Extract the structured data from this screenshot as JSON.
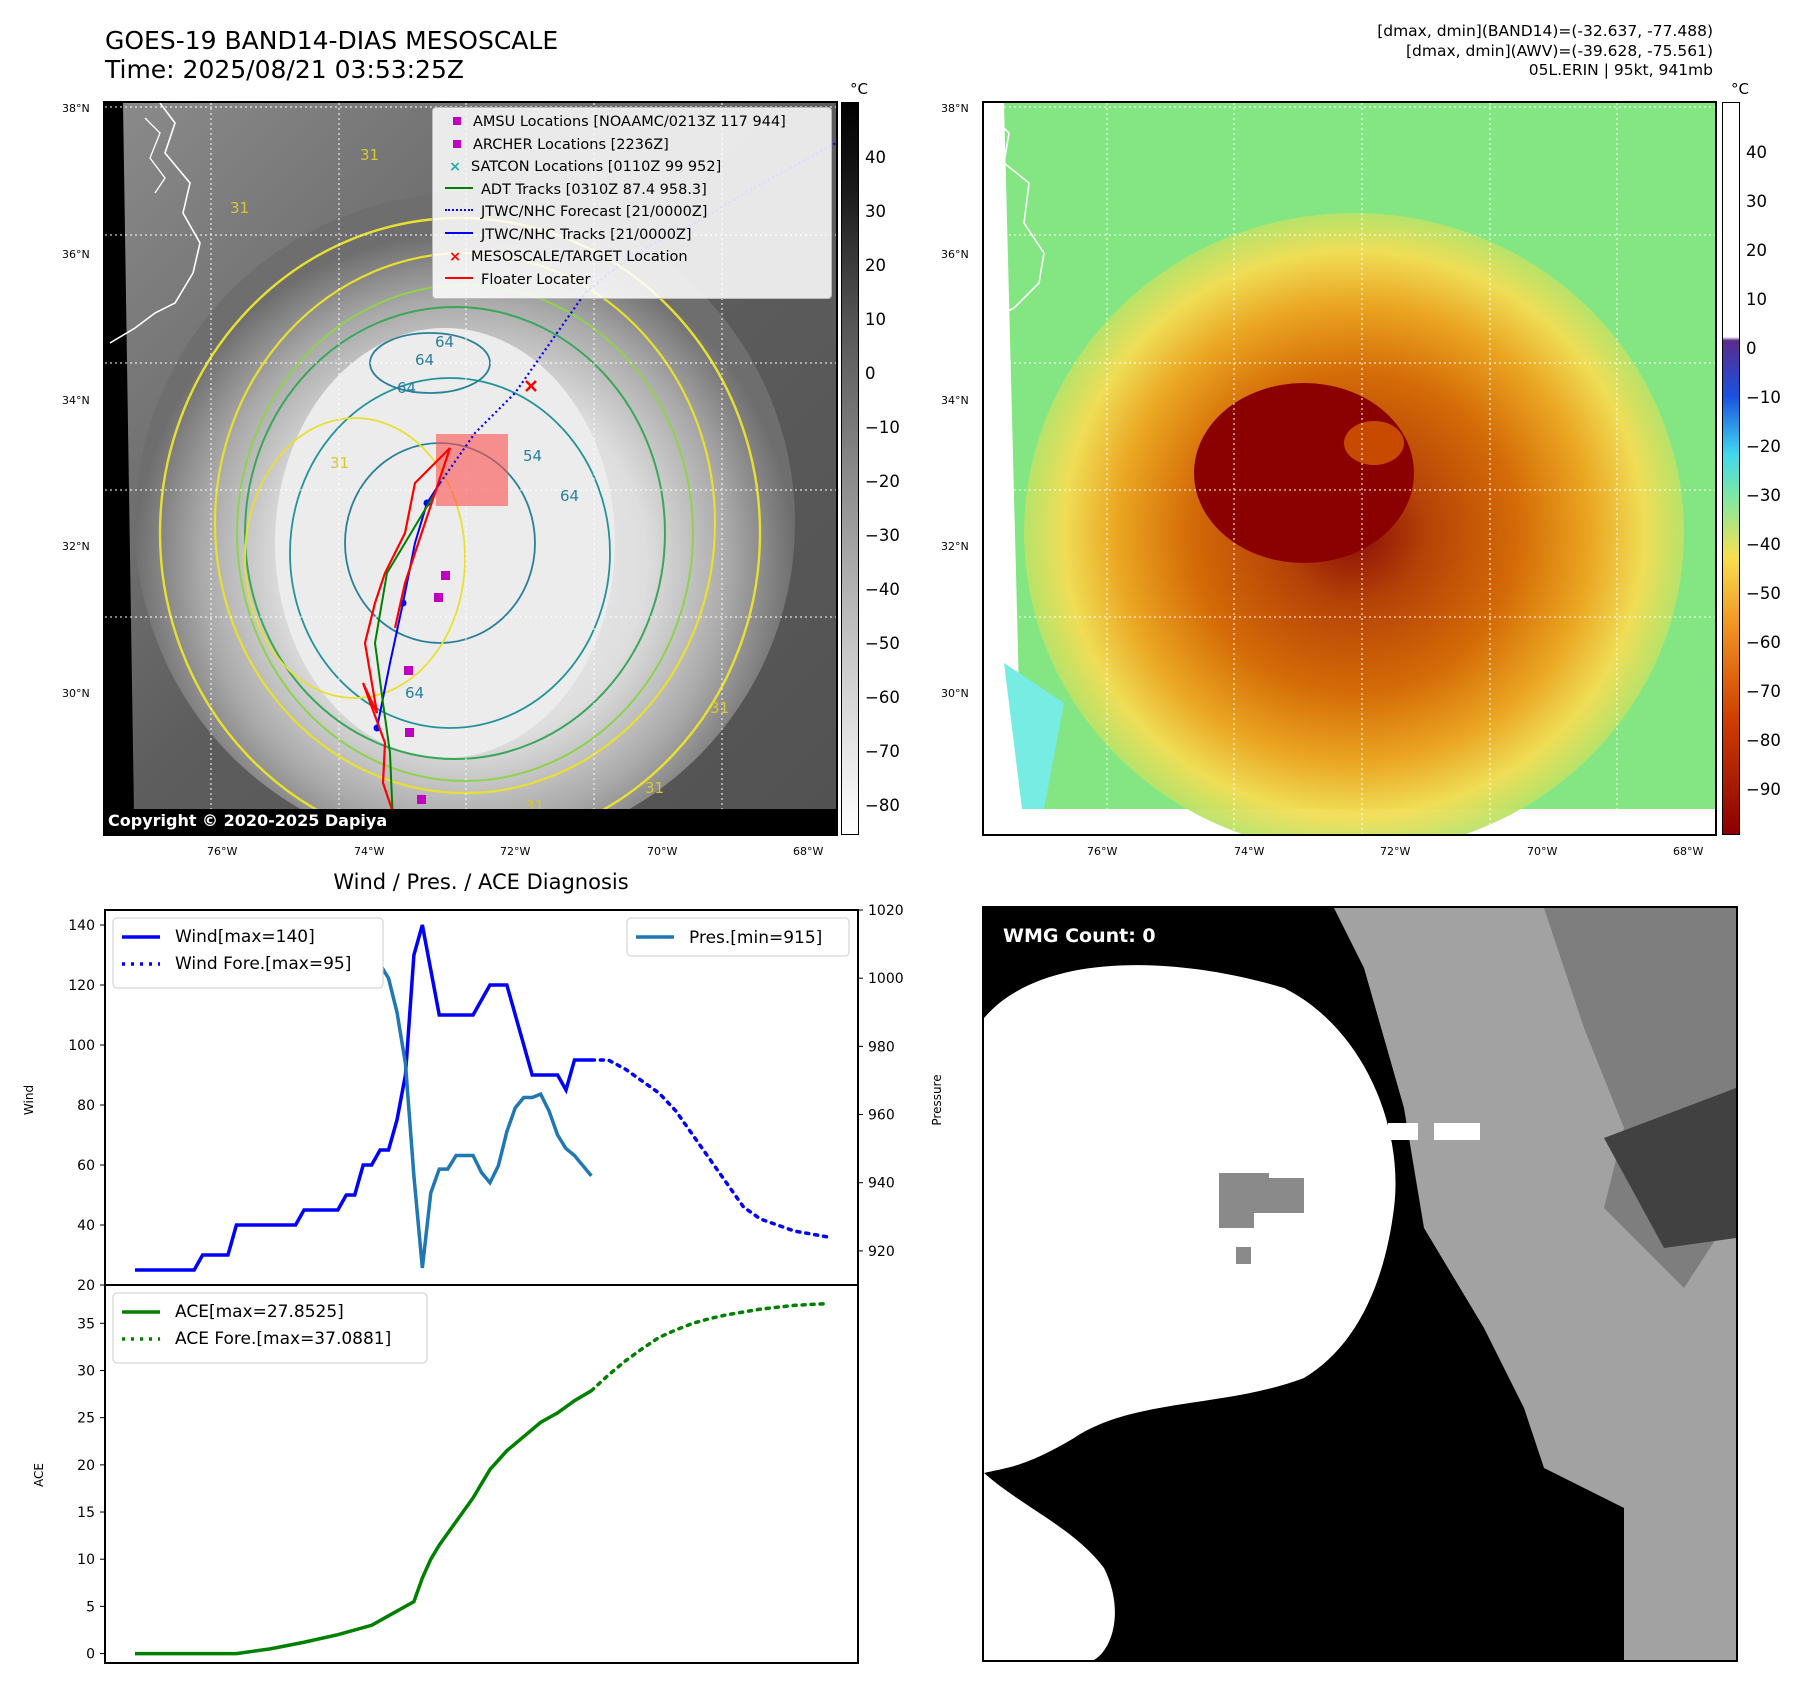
{
  "header": {
    "title_line1": "GOES-19 BAND14-DIAS MESOSCALE",
    "title_line2": "Time: 2025/08/21 03:53:25Z",
    "info_line1": "[dmax, dmin](BAND14)=(-32.637, -77.488)",
    "info_line2": "[dmax, dmin](AWV)=(-39.628, -75.561)",
    "info_line3": "05L.ERIN | 95kt, 941mb"
  },
  "map_axes": {
    "lat_labels": [
      "38°N",
      "36°N",
      "34°N",
      "32°N",
      "30°N"
    ],
    "lon_labels": [
      "76°W",
      "74°W",
      "72°W",
      "70°W",
      "68°W"
    ],
    "lat_values": [
      38,
      36,
      34,
      32,
      30
    ],
    "lon_values": [
      -76,
      -74,
      -72,
      -70,
      -68
    ]
  },
  "left_map": {
    "colorbar_unit": "°C",
    "colorbar_ticks": [
      "40",
      "30",
      "20",
      "10",
      "0",
      "−10",
      "−20",
      "−30",
      "−40",
      "−50",
      "−60",
      "−70",
      "−80"
    ],
    "contour_labels": [
      "64",
      "64",
      "64",
      "54",
      "64",
      "64",
      "31",
      "31",
      "31",
      "31",
      "31",
      "31"
    ],
    "copyright": "Copyright © 2020-2025 Dapiya",
    "legend": [
      {
        "label": "AMSU Locations [NOAAMC/0213Z 117 944]",
        "color": "#c000c0",
        "marker": "square"
      },
      {
        "label": "ARCHER Locations [2236Z]",
        "color": "#c000c0",
        "marker": "square"
      },
      {
        "label": "SATCON Locations [0110Z 99 952]",
        "color": "#20b2aa",
        "marker": "x"
      },
      {
        "label": "ADT Tracks [0310Z 87.4 958.3]",
        "color": "#008000",
        "marker": "line"
      },
      {
        "label": "JTWC/NHC Forecast [21/0000Z]",
        "color": "#0000ff",
        "marker": "dotted"
      },
      {
        "label": "JTWC/NHC Tracks [21/0000Z]",
        "color": "#0000ff",
        "marker": "line-dot"
      },
      {
        "label": "MESOSCALE/TARGET Location",
        "color": "#ff0000",
        "marker": "x"
      },
      {
        "label": "Floater Locater",
        "color": "#ff0000",
        "marker": "line"
      }
    ]
  },
  "right_map": {
    "colorbar_unit": "°C",
    "colorbar_ticks": [
      "40",
      "30",
      "20",
      "10",
      "0",
      "−10",
      "−20",
      "−30",
      "−40",
      "−50",
      "−60",
      "−70",
      "−80",
      "−90"
    ]
  },
  "wmg": {
    "label": "WMG Count: 0"
  },
  "chart_data": [
    {
      "type": "line",
      "title": "Wind / Pres. / ACE Diagnosis",
      "ylabel": "Wind",
      "ylabel_right": "Pressure",
      "ylim": [
        20,
        145
      ],
      "ylim_right": [
        910,
        1020
      ],
      "yticks": [
        20,
        40,
        60,
        80,
        100,
        120,
        140
      ],
      "yticks_right": [
        920,
        940,
        960,
        980,
        1000,
        1020
      ],
      "grid": false,
      "legend_left": "top-left",
      "legend_right": "top-right",
      "series": [
        {
          "name": "Wind[max=140]",
          "color": "#0000ff",
          "style": "solid",
          "x": [
            0,
            1,
            2,
            3,
            4,
            5,
            6,
            7,
            8,
            9,
            10,
            11,
            12,
            13,
            14,
            15,
            16,
            17,
            18,
            19,
            20,
            21,
            22,
            23,
            24,
            25,
            26,
            27,
            28,
            29,
            30,
            31,
            32,
            33,
            34,
            35,
            36,
            37,
            38,
            39,
            40,
            41,
            42,
            43,
            44,
            45,
            46,
            47,
            48,
            49,
            50,
            51,
            52,
            53,
            54
          ],
          "values": [
            25,
            25,
            25,
            25,
            25,
            25,
            25,
            25,
            30,
            30,
            30,
            30,
            40,
            40,
            40,
            40,
            40,
            40,
            40,
            40,
            45,
            45,
            45,
            45,
            45,
            50,
            50,
            60,
            60,
            65,
            65,
            75,
            90,
            130,
            140,
            125,
            110,
            110,
            110,
            110,
            110,
            115,
            120,
            120,
            120,
            110,
            100,
            90,
            90,
            90,
            90,
            85,
            95,
            95,
            95
          ]
        },
        {
          "name": "Wind Fore.[max=95]",
          "color": "#0000ff",
          "style": "dotted",
          "x": [
            54,
            56,
            58,
            60,
            62,
            64,
            66,
            68,
            70,
            72,
            74,
            76,
            78,
            80,
            82
          ],
          "values": [
            95,
            95,
            92,
            88,
            84,
            78,
            70,
            62,
            54,
            46,
            42,
            40,
            38,
            37,
            36
          ]
        },
        {
          "name": "Pres.[min=915]",
          "color": "#1f77b4",
          "style": "solid",
          "axis": "right",
          "x": [
            0,
            1,
            2,
            3,
            4,
            5,
            6,
            7,
            8,
            9,
            10,
            11,
            12,
            13,
            14,
            15,
            16,
            17,
            18,
            19,
            20,
            21,
            22,
            23,
            24,
            25,
            26,
            27,
            28,
            29,
            30,
            31,
            32,
            33,
            34,
            35,
            36,
            37,
            38,
            39,
            40,
            41,
            42,
            43,
            44,
            45,
            46,
            47,
            48,
            49,
            50,
            51,
            52,
            53,
            54
          ],
          "values": [
            1015,
            1015,
            1011,
            1011,
            1010,
            1010,
            1010,
            1010,
            1010,
            1010,
            1010,
            1010,
            1009,
            1009,
            1009,
            1008,
            1008,
            1009,
            1009,
            1008,
            1007,
            1007,
            1007,
            1007,
            1007,
            1005,
            1004,
            1004,
            1004,
            1004,
            1000,
            990,
            975,
            942,
            915,
            937,
            944,
            944,
            948,
            948,
            948,
            943,
            940,
            945,
            955,
            962,
            965,
            965,
            966,
            961,
            954,
            950,
            948,
            945,
            942
          ]
        }
      ]
    },
    {
      "type": "line",
      "ylabel": "ACE",
      "ylim": [
        -1,
        38
      ],
      "yticks": [
        0,
        5,
        10,
        15,
        20,
        25,
        30,
        35
      ],
      "grid": false,
      "legend": "top-left",
      "series": [
        {
          "name": "ACE[max=27.8525]",
          "color": "#008000",
          "style": "solid",
          "x": [
            0,
            4,
            8,
            12,
            16,
            20,
            24,
            28,
            30,
            32,
            33,
            34,
            35,
            36,
            38,
            40,
            42,
            44,
            46,
            48,
            50,
            52,
            54
          ],
          "values": [
            0,
            0,
            0,
            0,
            0.5,
            1.2,
            2,
            3,
            4,
            5,
            5.5,
            8,
            10,
            11.5,
            14,
            16.5,
            19.5,
            21.5,
            23,
            24.5,
            25.5,
            26.8,
            27.85
          ]
        },
        {
          "name": "ACE Fore.[max=37.0881]",
          "color": "#008000",
          "style": "dotted",
          "x": [
            54,
            56,
            58,
            60,
            62,
            64,
            66,
            68,
            70,
            72,
            74,
            76,
            78,
            80,
            82
          ],
          "values": [
            27.85,
            29.5,
            31,
            32.3,
            33.5,
            34.3,
            35,
            35.5,
            35.9,
            36.2,
            36.5,
            36.7,
            36.9,
            37.0,
            37.09
          ]
        }
      ]
    }
  ]
}
